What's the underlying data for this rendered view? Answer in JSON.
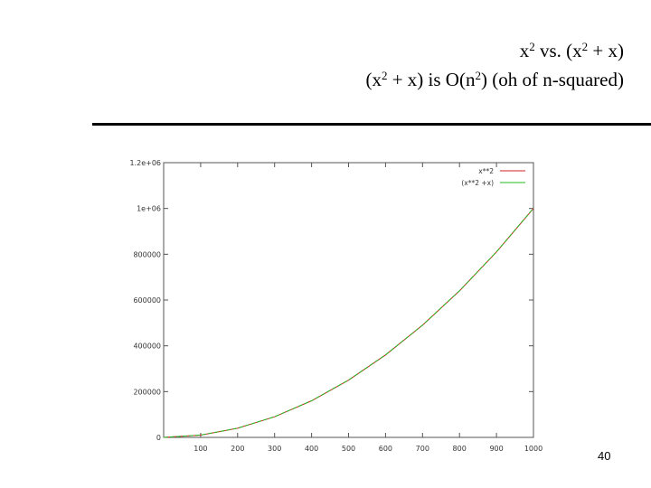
{
  "slide": {
    "title_line1": {
      "a": "x",
      "a_sup": "2",
      "b": " vs. (x",
      "b_sup": "2",
      "c": " + x)"
    },
    "title_line2": {
      "a": "(x",
      "a_sup": "2",
      "b": " + x) is O(n",
      "b_sup": "2",
      "c": ") (oh of n-squared)"
    },
    "page_number": "40"
  },
  "chart_data": {
    "type": "line",
    "xlim": [
      0,
      1000
    ],
    "ylim": [
      0,
      1200000
    ],
    "x_ticks": [
      100,
      200,
      300,
      400,
      500,
      600,
      700,
      800,
      900,
      1000
    ],
    "x_tick_labels": [
      "100",
      "200",
      "300",
      "400",
      "500",
      "600",
      "700",
      "800",
      "900",
      "1000"
    ],
    "y_ticks": [
      0,
      200000,
      400000,
      600000,
      800000,
      1000000,
      1200000
    ],
    "y_tick_labels": [
      "0",
      "200000",
      "400000",
      "600000",
      "800000",
      "1e+06",
      "1.2e+06"
    ],
    "legend_position": "top-right",
    "grid": false,
    "x": [
      0,
      100,
      200,
      300,
      400,
      500,
      600,
      700,
      800,
      900,
      1000
    ],
    "series": [
      {
        "name": "x**2",
        "color": "#d02020",
        "values": [
          0,
          10000,
          40000,
          90000,
          160000,
          250000,
          360000,
          490000,
          640000,
          810000,
          1000000
        ]
      },
      {
        "name": "(x**2 +x)",
        "color": "#22bb22",
        "values": [
          0,
          10100,
          40200,
          90300,
          160400,
          250500,
          360600,
          490700,
          640800,
          810900,
          1001000
        ]
      }
    ]
  }
}
